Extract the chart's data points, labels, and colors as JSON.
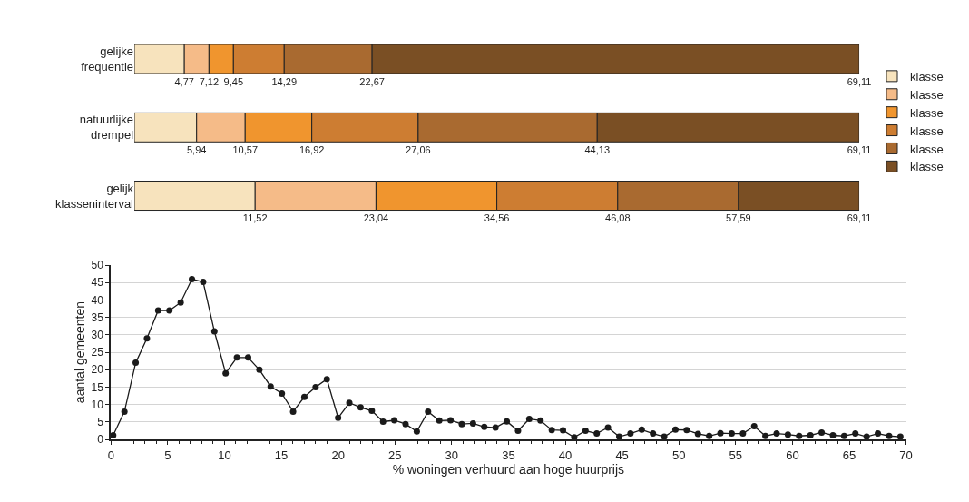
{
  "chart_data": [
    {
      "type": "bar",
      "orientation": "horizontal",
      "stacked": true,
      "categories": [
        "gelijke\nfrequentie"
      ],
      "xlim": [
        0,
        69.11
      ],
      "xticks": [
        {
          "value": 4.77,
          "label": "4,77"
        },
        {
          "value": 7.12,
          "label": "7,12"
        },
        {
          "value": 9.45,
          "label": "9,45"
        },
        {
          "value": 14.29,
          "label": "14,29"
        },
        {
          "value": 22.67,
          "label": "22,67"
        },
        {
          "value": 69.11,
          "label": "69,11"
        }
      ],
      "series": [
        {
          "color": "#f7e3bd",
          "values": [
            4.77
          ]
        },
        {
          "color": "#f5bb88",
          "values": [
            2.35
          ]
        },
        {
          "color": "#f0952e",
          "values": [
            2.33
          ]
        },
        {
          "color": "#cd7d32",
          "values": [
            4.84
          ]
        },
        {
          "color": "#a96a30",
          "values": [
            8.38
          ]
        },
        {
          "color": "#7a4f24",
          "values": [
            46.44
          ]
        }
      ]
    },
    {
      "type": "bar",
      "orientation": "horizontal",
      "stacked": true,
      "categories": [
        "natuurlijke\ndrempel"
      ],
      "xlim": [
        0,
        69.11
      ],
      "legend": "right",
      "xticks": [
        {
          "value": 5.94,
          "label": "5,94"
        },
        {
          "value": 10.57,
          "label": "10,57"
        },
        {
          "value": 16.92,
          "label": "16,92"
        },
        {
          "value": 27.06,
          "label": "27,06"
        },
        {
          "value": 44.13,
          "label": "44,13"
        },
        {
          "value": 69.11,
          "label": "69,11"
        }
      ],
      "series": [
        {
          "name": "klasse",
          "color": "#f7e3bd",
          "values": [
            5.94
          ]
        },
        {
          "name": "klasse",
          "color": "#f5bb88",
          "values": [
            4.63
          ]
        },
        {
          "name": "klasse",
          "color": "#f0952e",
          "values": [
            6.35
          ]
        },
        {
          "name": "klasse",
          "color": "#cd7d32",
          "values": [
            10.14
          ]
        },
        {
          "name": "klasse",
          "color": "#a96a30",
          "values": [
            17.07
          ]
        },
        {
          "name": "klasse",
          "color": "#7a4f24",
          "values": [
            24.98
          ]
        }
      ]
    },
    {
      "type": "bar",
      "orientation": "horizontal",
      "stacked": true,
      "categories": [
        "gelijk\nklasseninterval"
      ],
      "xlim": [
        0,
        69.11
      ],
      "xticks": [
        {
          "value": 11.52,
          "label": "11,52"
        },
        {
          "value": 23.04,
          "label": "23,04"
        },
        {
          "value": 34.56,
          "label": "34,56"
        },
        {
          "value": 46.08,
          "label": "46,08"
        },
        {
          "value": 57.59,
          "label": "57,59"
        },
        {
          "value": 69.11,
          "label": "69,11"
        }
      ],
      "series": [
        {
          "color": "#f7e3bd",
          "values": [
            11.52
          ]
        },
        {
          "color": "#f5bb88",
          "values": [
            11.52
          ]
        },
        {
          "color": "#f0952e",
          "values": [
            11.52
          ]
        },
        {
          "color": "#cd7d32",
          "values": [
            11.52
          ]
        },
        {
          "color": "#a96a30",
          "values": [
            11.51
          ]
        },
        {
          "color": "#7a4f24",
          "values": [
            11.52
          ]
        }
      ]
    },
    {
      "type": "line",
      "marker": "circle",
      "grid": "y",
      "xlabel": "% woningen verhuurd aan hoge huurprijs",
      "ylabel": "aantal gemeenten",
      "xlim": [
        0,
        70
      ],
      "xticks": [
        0,
        5,
        10,
        15,
        20,
        25,
        30,
        35,
        40,
        45,
        50,
        55,
        60,
        65,
        70
      ],
      "ylim": [
        0,
        50
      ],
      "yticks": [
        0,
        5,
        10,
        15,
        20,
        25,
        30,
        35,
        40,
        45,
        50
      ],
      "x": [
        0.2,
        1.19,
        2.18,
        3.17,
        4.16,
        5.15,
        6.14,
        7.13,
        8.12,
        9.11,
        10.1,
        11.09,
        12.08,
        13.07,
        14.06,
        15.05,
        16.04,
        17.03,
        18.02,
        19.01,
        20.0,
        20.99,
        21.98,
        22.97,
        23.96,
        24.95,
        25.94,
        26.93,
        27.92,
        28.91,
        29.9,
        30.89,
        31.88,
        32.87,
        33.86,
        34.85,
        35.84,
        36.83,
        37.82,
        38.81,
        39.8,
        40.79,
        41.78,
        42.77,
        43.76,
        44.75,
        45.74,
        46.73,
        47.72,
        48.71,
        49.7,
        50.69,
        51.68,
        52.67,
        53.66,
        54.65,
        55.64,
        56.63,
        57.62,
        58.61,
        59.6,
        60.59,
        61.58,
        62.57,
        63.56,
        64.55,
        65.54,
        66.53,
        67.52,
        68.51,
        69.5
      ],
      "series": [
        {
          "color": "#1a1a1a",
          "values": [
            1.2,
            8,
            22,
            29,
            37,
            37,
            39.3,
            46,
            45.2,
            31,
            19,
            23.5,
            23.5,
            20,
            15.2,
            13.2,
            8,
            12.2,
            15,
            17.3,
            6.2,
            10.5,
            9.2,
            8.2,
            5.1,
            5.5,
            4.4,
            2.3,
            8,
            5.4,
            5.5,
            4.4,
            4.6,
            3.6,
            3.4,
            5.2,
            2.5,
            5.9,
            5.4,
            2.7,
            2.6,
            0.6,
            2.5,
            1.7,
            3.4,
            0.8,
            1.7,
            2.8,
            1.7,
            0.8,
            2.8,
            2.7,
            1.6,
            1,
            1.8,
            1.7,
            1.7,
            3.8,
            1,
            1.7,
            1.4,
            1,
            1.2,
            2,
            1.2,
            1,
            1.7,
            0.8,
            1.7,
            1,
            0.8
          ]
        }
      ]
    }
  ]
}
